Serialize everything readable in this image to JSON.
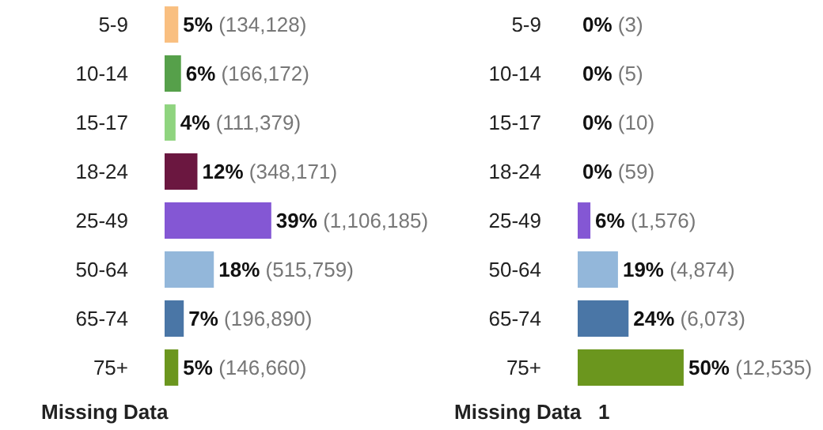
{
  "chart_data": [
    {
      "type": "bar",
      "orientation": "horizontal",
      "categories": [
        "5-9",
        "10-14",
        "15-17",
        "18-24",
        "25-49",
        "50-64",
        "65-74",
        "75+"
      ],
      "values": [
        5,
        6,
        4,
        12,
        39,
        18,
        7,
        5
      ],
      "colors": [
        "#f9bf80",
        "#56a04a",
        "#8fd47f",
        "#6b1740",
        "#8457d4",
        "#93b7da",
        "#4a76a6",
        "#6b961e"
      ],
      "value_labels": [
        "5% (134,128)",
        "6% (166,172)",
        "4% (111,379)",
        "12% (348,171)",
        "39% (1,106,185)",
        "18% (515,759)",
        "7% (196,890)",
        "5% (146,660)"
      ],
      "annotations": [
        "Missing Data"
      ]
    },
    {
      "type": "bar",
      "orientation": "horizontal",
      "categories": [
        "5-9",
        "10-14",
        "15-17",
        "18-24",
        "25-49",
        "50-64",
        "65-74",
        "75+"
      ],
      "values": [
        0,
        0,
        0,
        0,
        6,
        19,
        24,
        50
      ],
      "colors": [
        "#f9bf80",
        "#56a04a",
        "#8fd47f",
        "#6b1740",
        "#8457d4",
        "#93b7da",
        "#4a76a6",
        "#6b961e"
      ],
      "value_labels": [
        "0% (3)",
        "0% (5)",
        "0% (10)",
        "0% (59)",
        "6% (1,576)",
        "19% (4,874)",
        "24% (6,073)",
        "50% (12,535)"
      ],
      "annotations": [
        "Missing Data   1"
      ]
    }
  ]
}
